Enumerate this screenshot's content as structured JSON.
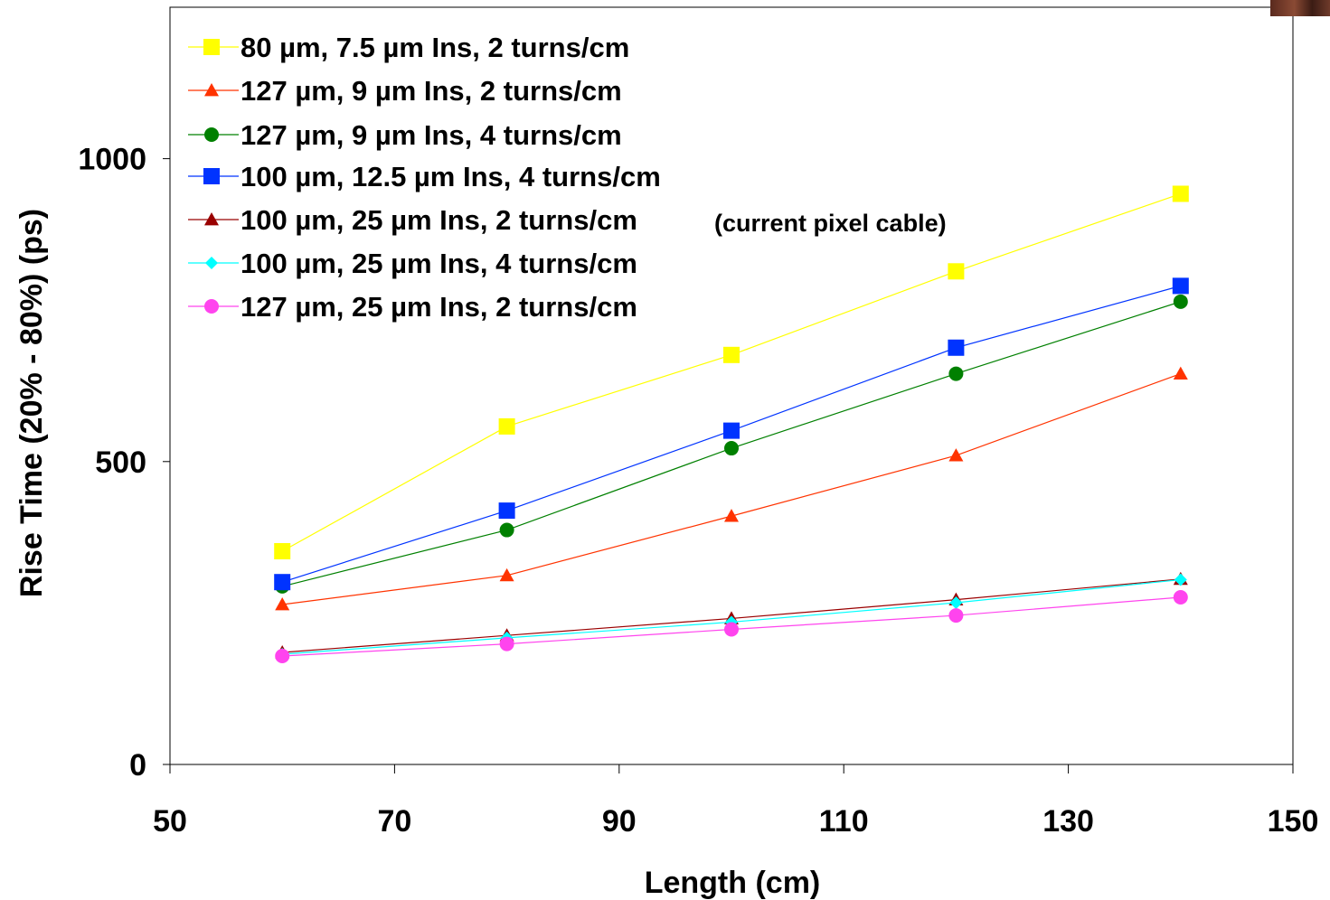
{
  "chart_data": {
    "type": "line",
    "title": "",
    "xlabel": "Length (cm)",
    "ylabel": "Rise Time (20% - 80%) (ps)",
    "xlim": [
      50,
      150
    ],
    "ylim": [
      0,
      1250
    ],
    "x_ticks": [
      "50",
      "70",
      "90",
      "110",
      "130",
      "150"
    ],
    "y_ticks": [
      "0",
      "500",
      "1000"
    ],
    "grid": false,
    "legend_position": "top-left",
    "legend_note": "(current pixel cable)",
    "x": [
      60,
      80,
      100,
      120,
      140
    ],
    "series": [
      {
        "name": "80 µm, 7.5 µm Ins, 2 turns/cm",
        "marker": "square",
        "color": "#ffff00",
        "values": [
          352,
          558,
          676,
          814,
          942
        ]
      },
      {
        "name": "127 µm, 9 µm Ins, 2 turns/cm",
        "marker": "triangle",
        "color": "#ff3300",
        "values": [
          264,
          312,
          410,
          510,
          645
        ]
      },
      {
        "name": "127 µm, 9 µm Ins, 4 turns/cm",
        "marker": "circle",
        "color": "#008000",
        "values": [
          294,
          387,
          522,
          645,
          764
        ]
      },
      {
        "name": "100 µm, 12.5 µm Ins, 4 turns/cm",
        "marker": "square",
        "color": "#0033ff",
        "values": [
          301,
          419,
          551,
          688,
          790
        ]
      },
      {
        "name": "100 µm, 25 µm Ins, 2 turns/cm",
        "marker": "triangle",
        "color": "#990000",
        "values": [
          185,
          213,
          241,
          272,
          306
        ]
      },
      {
        "name": "100 µm, 25 µm Ins, 4 turns/cm",
        "marker": "diamond",
        "color": "#00ffff",
        "values": [
          182,
          209,
          235,
          267,
          305
        ]
      },
      {
        "name": "127 µm, 25 µm Ins, 2 turns/cm",
        "marker": "circle",
        "color": "#ff44ee",
        "values": [
          179,
          199,
          223,
          246,
          276
        ]
      }
    ]
  }
}
